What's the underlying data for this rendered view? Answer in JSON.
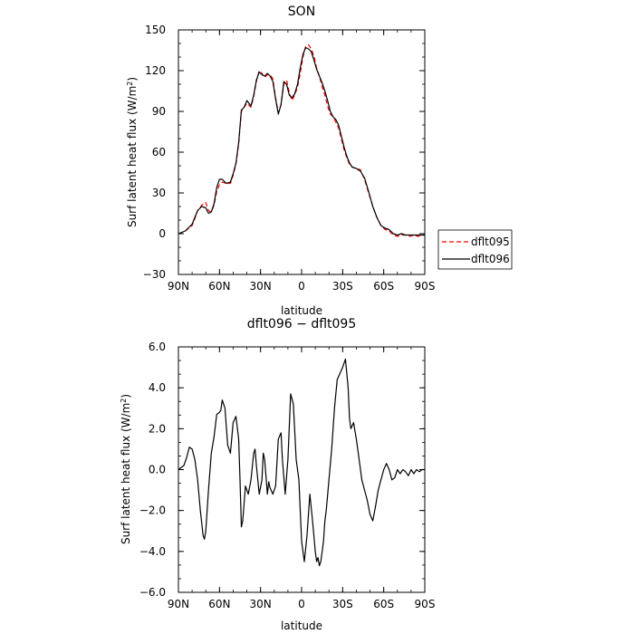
{
  "chart_data": [
    {
      "type": "line",
      "title": "SON",
      "xlabel": "latitude",
      "ylabel": "Surf latent heat flux (W/m",
      "ylabel_sup": "2",
      "ylabel_end": ")",
      "xlim": [
        90,
        -90
      ],
      "ylim": [
        -30,
        150
      ],
      "x_ticks": [
        90,
        60,
        30,
        0,
        -30,
        -60,
        -90
      ],
      "x_tick_labels": [
        "90N",
        "60N",
        "30N",
        "0",
        "30S",
        "60S",
        "90S"
      ],
      "y_ticks": [
        -30,
        0,
        30,
        60,
        90,
        120,
        150
      ],
      "y_tick_labels": [
        "−30",
        "0",
        "30",
        "60",
        "90",
        "120",
        "150"
      ],
      "legend_position": "right",
      "series": [
        {
          "name": "dflt095",
          "color": "#ff0000",
          "dash": "dashed",
          "x": [
            90,
            85,
            80,
            78,
            76,
            73,
            70,
            68,
            66,
            64,
            62,
            60,
            58,
            55,
            52,
            50,
            48,
            46,
            44,
            42,
            40,
            37,
            35,
            33,
            31,
            29,
            27,
            25,
            23,
            21,
            19,
            17,
            15,
            13,
            11,
            9,
            7,
            5,
            3,
            1,
            -1,
            -3,
            -5,
            -7,
            -9,
            -11,
            -13,
            -15,
            -17,
            -19,
            -21,
            -23,
            -25,
            -27,
            -29,
            -31,
            -33,
            -35,
            -37,
            -40,
            -43,
            -46,
            -49,
            -52,
            -55,
            -58,
            -61,
            -64,
            -67,
            -70,
            -73,
            -76,
            -79,
            -82,
            -85,
            -88,
            -90
          ],
          "y": [
            0,
            2,
            6,
            11,
            17,
            21,
            23,
            17,
            16,
            21,
            31,
            36,
            38,
            37,
            37,
            43,
            51,
            66,
            90,
            93,
            96,
            93,
            101,
            112,
            120,
            118,
            115,
            117,
            117,
            114,
            100,
            89,
            95,
            110,
            113,
            104,
            98,
            102,
            108,
            118,
            130,
            138,
            139,
            136,
            131,
            122,
            116,
            108,
            102,
            94,
            88,
            86,
            82,
            78,
            70,
            62,
            56,
            51,
            49,
            48,
            47,
            40,
            30,
            20,
            12,
            6,
            3,
            2,
            -1,
            -2,
            -1,
            -1,
            -2,
            -1,
            -2,
            -1,
            -1
          ]
        },
        {
          "name": "dflt096",
          "color": "#000000",
          "dash": "solid",
          "x": [
            90,
            85,
            80,
            78,
            76,
            73,
            70,
            68,
            66,
            64,
            62,
            60,
            58,
            55,
            52,
            50,
            48,
            46,
            44,
            42,
            40,
            37,
            35,
            33,
            31,
            29,
            27,
            25,
            23,
            21,
            19,
            17,
            15,
            13,
            11,
            9,
            7,
            5,
            3,
            1,
            -1,
            -3,
            -5,
            -7,
            -9,
            -11,
            -13,
            -15,
            -17,
            -19,
            -21,
            -23,
            -25,
            -27,
            -29,
            -31,
            -33,
            -35,
            -37,
            -40,
            -43,
            -46,
            -49,
            -52,
            -55,
            -58,
            -61,
            -64,
            -67,
            -70,
            -73,
            -76,
            -79,
            -82,
            -85,
            -88,
            -90
          ],
          "y": [
            0,
            2,
            7,
            12,
            17,
            20,
            19,
            15,
            16,
            22,
            34,
            40,
            40,
            37,
            38,
            44,
            52,
            67,
            91,
            93,
            98,
            94,
            102,
            113,
            119,
            117,
            116,
            118,
            116,
            112,
            99,
            88,
            95,
            112,
            110,
            102,
            100,
            103,
            110,
            122,
            132,
            137,
            136,
            134,
            128,
            121,
            116,
            111,
            105,
            98,
            90,
            86,
            84,
            80,
            72,
            64,
            57,
            52,
            49,
            48,
            46,
            41,
            31,
            20,
            12,
            6,
            4,
            3,
            0,
            -1,
            0,
            -1,
            -1,
            -1,
            -1,
            -1,
            -1
          ]
        }
      ]
    },
    {
      "type": "line",
      "title": "dflt096 − dflt095",
      "xlabel": "latitude",
      "ylabel": "Surf latent heat flux (W/m",
      "ylabel_sup": "2",
      "ylabel_end": ")",
      "xlim": [
        90,
        -90
      ],
      "ylim": [
        -6,
        6
      ],
      "x_ticks": [
        90,
        60,
        30,
        0,
        -30,
        -60,
        -90
      ],
      "x_tick_labels": [
        "90N",
        "60N",
        "30N",
        "0",
        "30S",
        "60S",
        "90S"
      ],
      "y_ticks": [
        -6,
        -4,
        -2,
        0,
        2,
        4,
        6
      ],
      "y_tick_labels": [
        "−6.0",
        "−4.0",
        "−2.0",
        "0.0",
        "2.0",
        "4.0",
        "6.0"
      ],
      "series": [
        {
          "color": "#000000",
          "dash": "solid",
          "x": [
            90,
            86,
            84,
            82,
            80,
            78,
            76,
            74,
            72,
            71,
            70,
            68,
            66,
            64,
            62,
            60,
            59,
            58,
            56,
            54,
            52,
            50,
            48,
            46,
            45,
            44,
            43,
            41,
            39,
            37,
            35,
            34,
            33,
            31,
            29,
            28,
            27,
            25,
            24,
            23,
            21,
            19,
            17,
            15,
            14,
            12,
            10,
            8,
            6,
            4,
            2,
            1,
            0,
            -2,
            -4,
            -6,
            -8,
            -10,
            -11,
            -12,
            -13,
            -14,
            -15,
            -16,
            -17,
            -18,
            -20,
            -22,
            -24,
            -26,
            -28,
            -30,
            -32,
            -34,
            -35,
            -36,
            -38,
            -40,
            -42,
            -44,
            -46,
            -48,
            -50,
            -52,
            -54,
            -56,
            -58,
            -60,
            -62,
            -64,
            -66,
            -68,
            -70,
            -72,
            -74,
            -76,
            -78,
            -80,
            -82,
            -84,
            -86,
            -88,
            -90
          ],
          "y": [
            0,
            0.2,
            0.6,
            1.1,
            1.0,
            0.5,
            -0.5,
            -2.0,
            -3.2,
            -3.4,
            -3.0,
            -1.0,
            0.8,
            1.6,
            2.7,
            2.8,
            2.9,
            3.4,
            3.0,
            1.2,
            0.8,
            2.3,
            2.6,
            1.5,
            -0.5,
            -2.8,
            -2.5,
            -0.8,
            -1.2,
            -0.5,
            0.8,
            1.0,
            0.2,
            -1.2,
            -0.5,
            0.8,
            0.5,
            -1.2,
            -0.6,
            -0.9,
            -1.2,
            -0.8,
            1.5,
            1.8,
            0.5,
            -1.2,
            0.5,
            3.7,
            3.2,
            0.5,
            -0.5,
            -2.0,
            -3.5,
            -4.5,
            -3.2,
            -1.2,
            -2.5,
            -4.0,
            -4.5,
            -4.3,
            -4.7,
            -4.5,
            -4.0,
            -3.5,
            -2.5,
            -2.0,
            -0.5,
            1.0,
            3.0,
            4.4,
            4.7,
            5.0,
            5.4,
            4.0,
            2.5,
            2.0,
            2.3,
            1.5,
            0.5,
            -0.5,
            -1.0,
            -1.5,
            -2.2,
            -2.5,
            -1.8,
            -1.0,
            -0.5,
            0.0,
            0.3,
            0.0,
            -0.5,
            -0.4,
            0.0,
            -0.2,
            0.0,
            -0.1,
            -0.3,
            0.0,
            -0.2,
            0.0,
            -0.1,
            0.0,
            0.0
          ]
        }
      ]
    }
  ]
}
